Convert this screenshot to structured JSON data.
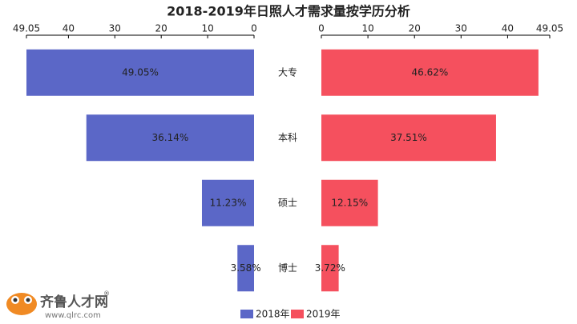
{
  "chart_data": {
    "type": "butterfly",
    "title": "2018-2019年日照人才需求量按学历分析",
    "categories": [
      "大专",
      "本科",
      "硕士",
      "博士"
    ],
    "xlim": [
      0,
      49.05
    ],
    "xticks": [
      0,
      10,
      20,
      30,
      40,
      49.05
    ],
    "series": [
      {
        "name": "2018年",
        "color": "#5b67c7",
        "values": [
          49.05,
          36.14,
          11.23,
          3.58
        ],
        "value_labels": [
          "49.05%",
          "36.14%",
          "11.23%",
          "3.58%"
        ]
      },
      {
        "name": "2019年",
        "color": "#f5505e",
        "values": [
          46.62,
          37.51,
          12.15,
          3.72
        ],
        "value_labels": [
          "46.62%",
          "37.51%",
          "12.15%",
          "3.72%"
        ]
      }
    ],
    "legend": "bottom"
  },
  "logo": {
    "name": "齐鲁人才网",
    "mark": "®",
    "url": "www.qlrc.com"
  }
}
